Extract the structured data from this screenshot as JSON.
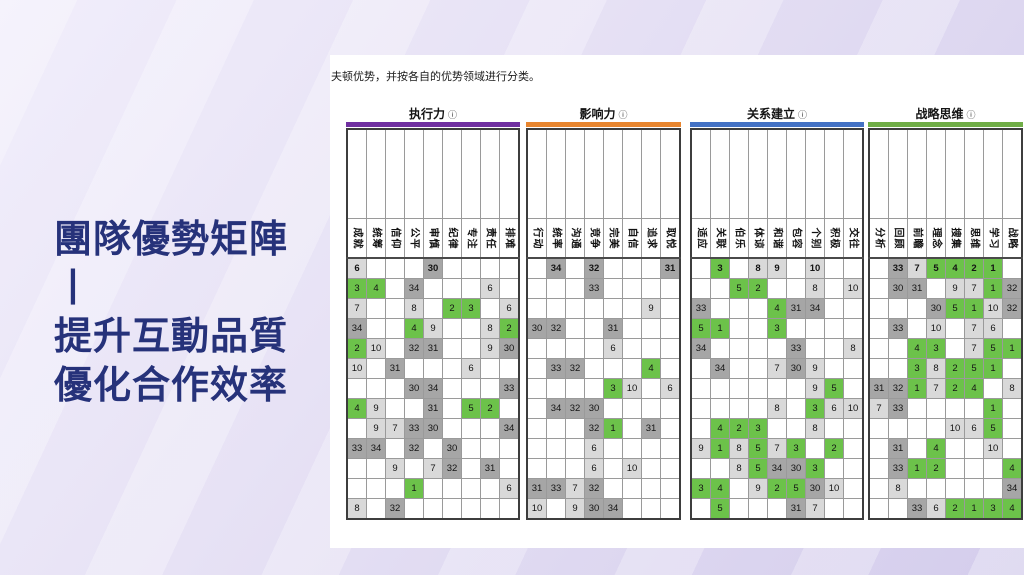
{
  "slide": {
    "title_lines": [
      "團隊優勢矩陣丨",
      "提升互動品質",
      "優化合作效率"
    ],
    "title_color": "#26327a"
  },
  "panel": {
    "intro_text": "夫顿优势，并按各自的优势领域进行分类。",
    "info_icon": "ⓘ",
    "rank_colors": {
      "top5_green": "#6cc24a",
      "top10_gray": "#d9d9d9",
      "bottom5_gray": "#a6a6a6"
    },
    "groups": [
      {
        "name": "执行力",
        "bar_color": "#7030a0",
        "columns": [
          "成就",
          "统筹",
          "信仰",
          "公平",
          "审慎",
          "纪律",
          "专注",
          "责任",
          "排难"
        ],
        "rows": [
          [
            6,
            "",
            "",
            "",
            30,
            "",
            "",
            "",
            ""
          ],
          [
            3,
            4,
            "",
            34,
            "",
            "",
            "",
            6,
            ""
          ],
          [
            7,
            "",
            "",
            8,
            "",
            2,
            3,
            "",
            6
          ],
          [
            34,
            "",
            "",
            4,
            9,
            "",
            "",
            8,
            2
          ],
          [
            2,
            10,
            "",
            32,
            31,
            "",
            "",
            9,
            30
          ],
          [
            10,
            "",
            31,
            "",
            "",
            "",
            6,
            "",
            ""
          ],
          [
            "",
            "",
            "",
            30,
            34,
            "",
            "",
            "",
            33
          ],
          [
            4,
            9,
            "",
            "",
            31,
            "",
            5,
            2,
            ""
          ],
          [
            "",
            9,
            7,
            33,
            30,
            "",
            "",
            "",
            34
          ],
          [
            33,
            34,
            "",
            32,
            "",
            30,
            "",
            "",
            ""
          ],
          [
            "",
            "",
            9,
            "",
            7,
            32,
            "",
            31,
            ""
          ],
          [
            "",
            "",
            "",
            1,
            "",
            "",
            "",
            "",
            6
          ],
          [
            8,
            "",
            32,
            "",
            "",
            "",
            "",
            "",
            ""
          ]
        ]
      },
      {
        "name": "影响力",
        "bar_color": "#e8852e",
        "columns": [
          "行动",
          "统率",
          "沟通",
          "竞争",
          "完美",
          "自信",
          "追求",
          "取悦"
        ],
        "rows": [
          [
            "",
            34,
            "",
            32,
            "",
            "",
            "",
            31
          ],
          [
            "",
            "",
            "",
            33,
            "",
            "",
            "",
            ""
          ],
          [
            "",
            "",
            "",
            "",
            "",
            "",
            9,
            ""
          ],
          [
            30,
            32,
            "",
            "",
            31,
            "",
            "",
            ""
          ],
          [
            "",
            "",
            "",
            "",
            6,
            "",
            "",
            ""
          ],
          [
            "",
            33,
            32,
            "",
            "",
            "",
            4,
            ""
          ],
          [
            "",
            "",
            "",
            "",
            3,
            10,
            "",
            6
          ],
          [
            "",
            34,
            32,
            30,
            "",
            "",
            "",
            ""
          ],
          [
            "",
            "",
            "",
            32,
            1,
            "",
            31,
            ""
          ],
          [
            "",
            "",
            "",
            6,
            "",
            "",
            "",
            ""
          ],
          [
            "",
            "",
            "",
            6,
            "",
            10,
            "",
            ""
          ],
          [
            31,
            33,
            7,
            32,
            "",
            "",
            "",
            ""
          ],
          [
            10,
            "",
            9,
            30,
            34,
            "",
            "",
            ""
          ]
        ]
      },
      {
        "name": "关系建立",
        "bar_color": "#4472c4",
        "columns": [
          "适应",
          "关联",
          "伯乐",
          "体谅",
          "和谐",
          "包容",
          "个别",
          "积极",
          "交往"
        ],
        "rows": [
          [
            "",
            3,
            "",
            8,
            9,
            "",
            10,
            "",
            ""
          ],
          [
            "",
            "",
            5,
            2,
            "",
            "",
            8,
            "",
            10
          ],
          [
            33,
            "",
            "",
            "",
            4,
            31,
            34,
            "",
            ""
          ],
          [
            5,
            1,
            "",
            "",
            3,
            "",
            "",
            "",
            ""
          ],
          [
            34,
            "",
            "",
            "",
            "",
            33,
            "",
            "",
            8
          ],
          [
            "",
            34,
            "",
            "",
            7,
            30,
            9,
            "",
            ""
          ],
          [
            "",
            "",
            "",
            "",
            "",
            "",
            9,
            5,
            ""
          ],
          [
            "",
            "",
            "",
            "",
            8,
            "",
            3,
            6,
            10
          ],
          [
            "",
            4,
            2,
            3,
            "",
            "",
            8,
            "",
            ""
          ],
          [
            9,
            1,
            8,
            5,
            7,
            3,
            "",
            2,
            ""
          ],
          [
            "",
            "",
            8,
            5,
            34,
            30,
            3,
            "",
            ""
          ],
          [
            3,
            4,
            "",
            9,
            2,
            5,
            30,
            10,
            ""
          ],
          [
            "",
            5,
            "",
            "",
            "",
            31,
            7,
            "",
            ""
          ]
        ]
      },
      {
        "name": "战略思维",
        "bar_color": "#70ad47",
        "columns": [
          "分析",
          "回顾",
          "前瞻",
          "理念",
          "搜集",
          "思维",
          "学习",
          "战略"
        ],
        "rows": [
          [
            "",
            33,
            7,
            5,
            4,
            2,
            1,
            ""
          ],
          [
            "",
            30,
            31,
            "",
            9,
            7,
            1,
            32
          ],
          [
            "",
            "",
            "",
            30,
            5,
            1,
            10,
            32
          ],
          [
            "",
            33,
            "",
            10,
            "",
            7,
            6,
            ""
          ],
          [
            "",
            "",
            4,
            3,
            "",
            7,
            5,
            1
          ],
          [
            "",
            "",
            3,
            8,
            2,
            5,
            1,
            ""
          ],
          [
            31,
            32,
            1,
            7,
            2,
            4,
            "",
            8
          ],
          [
            7,
            33,
            "",
            "",
            "",
            "",
            1,
            ""
          ],
          [
            "",
            "",
            "",
            "",
            10,
            6,
            5,
            ""
          ],
          [
            "",
            31,
            "",
            4,
            "",
            "",
            10,
            ""
          ],
          [
            "",
            33,
            1,
            2,
            "",
            "",
            "",
            4
          ],
          [
            "",
            8,
            "",
            "",
            "",
            "",
            "",
            34
          ],
          [
            "",
            "",
            33,
            6,
            2,
            1,
            3,
            4
          ]
        ]
      }
    ]
  }
}
